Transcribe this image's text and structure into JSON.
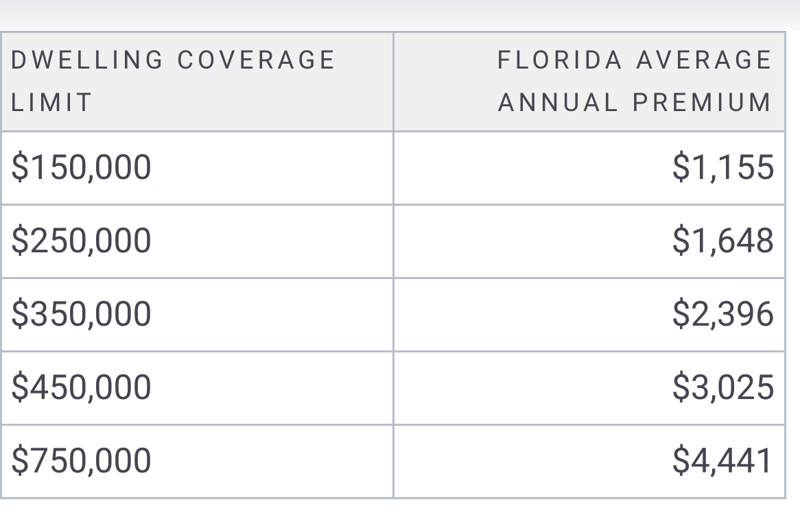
{
  "table": {
    "header": [
      "DWELLING COVERAGE LIMIT",
      "FLORIDA AVERAGE ANNUAL PREMIUM"
    ],
    "rows": [
      [
        "$150,000",
        "$1,155"
      ],
      [
        "$250,000",
        "$1,648"
      ],
      [
        "$350,000",
        "$2,396"
      ],
      [
        "$450,000",
        "$3,025"
      ],
      [
        "$750,000",
        "$4,441"
      ]
    ]
  }
}
